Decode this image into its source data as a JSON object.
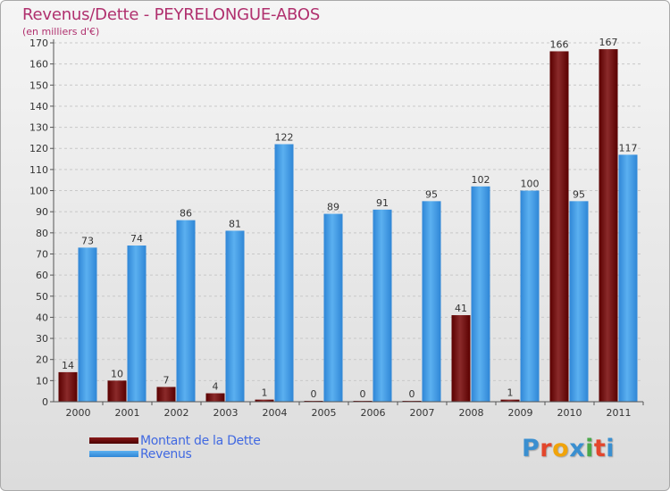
{
  "header": {
    "title": "Revenus/Dette - PEYRELONGUE-ABOS",
    "subtitle": "(en milliers d'€)"
  },
  "legend": {
    "items": [
      {
        "label": "Montant de la Dette",
        "color": "#6b0000"
      },
      {
        "label": "Revenus",
        "color": "#3d9ee8"
      }
    ]
  },
  "logo": {
    "text": "Proxiti",
    "letter_colors": [
      "#3a8fd0",
      "#e3462c",
      "#f0a30a",
      "#3a8fd0",
      "#4aa84a",
      "#e3462c",
      "#3a8fd0"
    ]
  },
  "chart_data": {
    "type": "bar",
    "title": "Revenus/Dette - PEYRELONGUE-ABOS",
    "ylabel": "(en milliers d'€)",
    "xlabel": "",
    "ylim": [
      0,
      170
    ],
    "ytick_step": 10,
    "grid": true,
    "categories": [
      "2000",
      "2001",
      "2002",
      "2003",
      "2004",
      "2005",
      "2006",
      "2007",
      "2008",
      "2009",
      "2010",
      "2011"
    ],
    "series": [
      {
        "name": "Montant de la Dette",
        "color": "#7a1010",
        "values": [
          14,
          10,
          7,
          4,
          1,
          0,
          0,
          0,
          41,
          1,
          166,
          167
        ]
      },
      {
        "name": "Revenus",
        "color": "#3d9ee8",
        "values": [
          73,
          74,
          86,
          81,
          122,
          89,
          91,
          95,
          102,
          100,
          95,
          117
        ]
      }
    ]
  }
}
